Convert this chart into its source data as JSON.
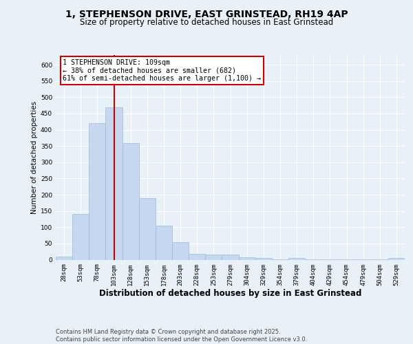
{
  "title_line1": "1, STEPHENSON DRIVE, EAST GRINSTEAD, RH19 4AP",
  "title_line2": "Size of property relative to detached houses in East Grinstead",
  "xlabel": "Distribution of detached houses by size in East Grinstead",
  "ylabel": "Number of detached properties",
  "categories": [
    "28sqm",
    "53sqm",
    "78sqm",
    "103sqm",
    "128sqm",
    "153sqm",
    "178sqm",
    "203sqm",
    "228sqm",
    "253sqm",
    "279sqm",
    "304sqm",
    "329sqm",
    "354sqm",
    "379sqm",
    "404sqm",
    "429sqm",
    "454sqm",
    "479sqm",
    "504sqm",
    "529sqm"
  ],
  "values": [
    10,
    140,
    420,
    470,
    360,
    190,
    105,
    55,
    18,
    15,
    15,
    8,
    5,
    2,
    5,
    2,
    1,
    1,
    1,
    1,
    5
  ],
  "bar_color": "#c5d8f0",
  "bar_edge_color": "#a0b8d8",
  "vline_x_index": 3,
  "vline_color": "#cc0000",
  "annotation_text": "1 STEPHENSON DRIVE: 109sqm\n← 38% of detached houses are smaller (682)\n61% of semi-detached houses are larger (1,100) →",
  "annotation_box_color": "#ffffff",
  "annotation_box_edge": "#cc0000",
  "ylim": [
    0,
    630
  ],
  "yticks": [
    0,
    50,
    100,
    150,
    200,
    250,
    300,
    350,
    400,
    450,
    500,
    550,
    600
  ],
  "footer_text": "Contains HM Land Registry data © Crown copyright and database right 2025.\nContains public sector information licensed under the Open Government Licence v3.0.",
  "bg_color": "#e8f0f8",
  "grid_color": "#ffffff",
  "tick_label_fontsize": 6.5,
  "ylabel_fontsize": 7.5,
  "xlabel_fontsize": 8.5
}
